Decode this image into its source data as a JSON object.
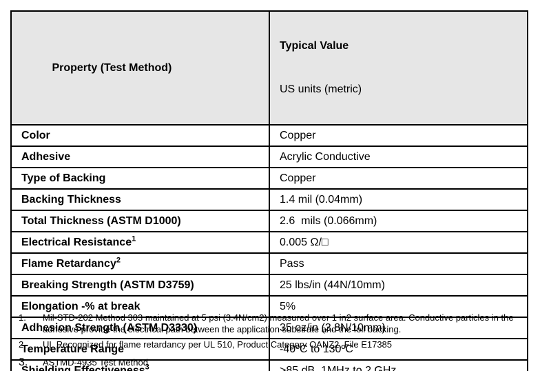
{
  "colors": {
    "header_bg": "#e6e6e6",
    "border": "#000000",
    "text": "#000000"
  },
  "table": {
    "header": {
      "property_label": "Property (Test Method)",
      "value_label_line1": "Typical Value",
      "value_label_line2": "US units (metric)"
    },
    "rows": [
      {
        "property": "Color",
        "value": "Copper"
      },
      {
        "property": "Adhesive",
        "value": "Acrylic Conductive"
      },
      {
        "property": "Type of Backing",
        "value": "Copper"
      },
      {
        "property": "Backing Thickness",
        "value": "1.4 mil (0.04mm)"
      },
      {
        "property": "Total Thickness (ASTM D1000)",
        "value": "2.6  mils (0.066mm)"
      },
      {
        "property": "Electrical Resistance",
        "footnote_ref": "1",
        "value": "0.005 Ω/□"
      },
      {
        "property": "Flame Retardancy",
        "footnote_ref": "2",
        "value": "Pass"
      },
      {
        "property": "Breaking Strength (ASTM D3759)",
        "value": "25 lbs/in (44N/10mm)"
      },
      {
        "property": "Elongation -% at break",
        "value": "5%"
      },
      {
        "property": "Adhesion Strength (ASTM D3330)",
        "value": "35 oz/in (3.8N/10mm)"
      },
      {
        "property": "Temperature Range",
        "value": "-40ºC to 130ºC"
      },
      {
        "property": "Shielding Effectiveness",
        "footnote_ref": "3",
        "value": ">85 dB, 1MHz to 2 GHz"
      }
    ]
  },
  "footnotes": [
    {
      "num": "1.",
      "text": "Mil-STD-202 Method 303 maintained at 5 psi (3.4N/cm2) measured over 1 in2 surface area. Conductive particles in the adhesive provide the electrical path between the application substrate and the foil backing."
    },
    {
      "num": "2.",
      "text": "UL Recognized for flame retardancy per UL 510, Product Category OANZ2, File E17385"
    },
    {
      "num": "3.",
      "text": "ASTMD-4935 Test Method",
      "large_num": true
    }
  ]
}
